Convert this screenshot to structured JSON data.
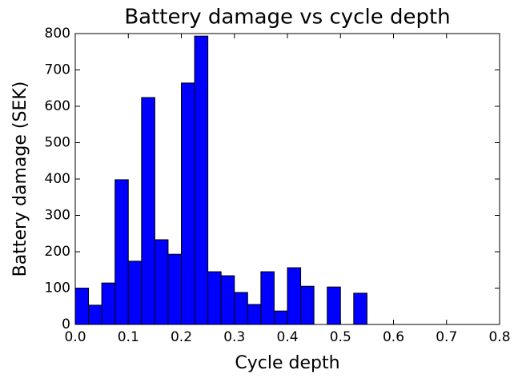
{
  "chart_data": {
    "type": "histogram",
    "title": "Battery damage vs cycle depth",
    "xlabel": "Cycle depth",
    "ylabel": "Battery damage (SEK)",
    "bins": [
      0,
      0.025,
      0.05,
      0.075,
      0.1,
      0.125,
      0.15,
      0.175,
      0.2,
      0.225,
      0.25,
      0.275,
      0.3,
      0.325,
      0.35,
      0.375,
      0.4,
      0.425,
      0.45,
      0.475,
      0.5,
      0.525,
      0.55
    ],
    "counts": [
      100,
      53,
      114,
      398,
      174,
      624,
      233,
      193,
      664,
      793,
      145,
      134,
      88,
      55,
      145,
      37,
      156,
      105,
      0,
      103,
      0,
      86
    ],
    "color": "#0000ff",
    "xlim": [
      0,
      0.8
    ],
    "xticks": [
      {
        "value": 0,
        "label": "0.0"
      },
      0.1,
      0.2,
      0.3,
      0.4,
      0.5,
      0.6,
      0.7,
      0.8
    ],
    "ylim": [
      0,
      800
    ],
    "yticks": [
      0,
      100,
      200,
      300,
      400,
      500,
      600,
      700,
      800
    ]
  }
}
